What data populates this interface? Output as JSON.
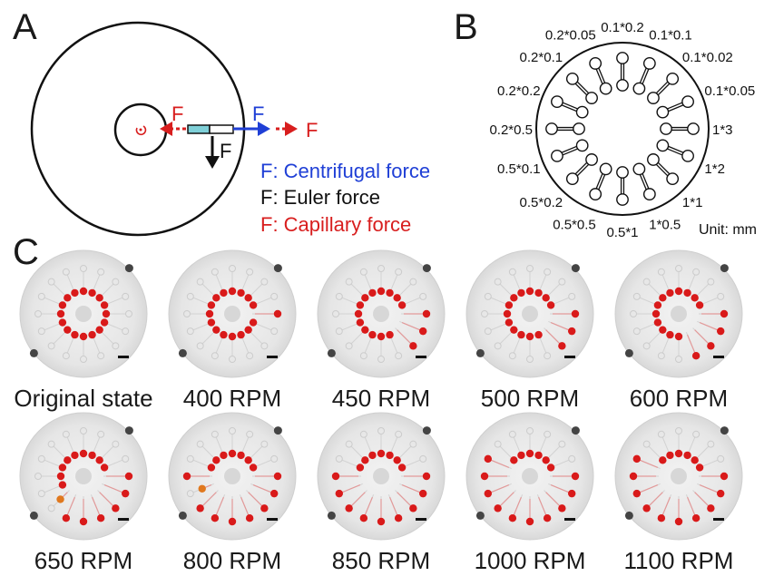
{
  "panels": {
    "a": {
      "letter": "A",
      "force_glyph": "F",
      "legend": [
        {
          "text": "F: Centrifugal force",
          "color": "#1f3fd6"
        },
        {
          "text": "F: Euler force",
          "color": "#111111"
        },
        {
          "text": "F: Capillary force",
          "color": "#d81e1e"
        }
      ],
      "colors": {
        "centrifugal": "#1f3fd6",
        "euler": "#111111",
        "capillary": "#d81e1e",
        "channel": "#7fd0d8"
      }
    },
    "b": {
      "letter": "B",
      "unit": "Unit: mm",
      "channel_labels": [
        "0.1*0.2",
        "0.1*0.1",
        "0.1*0.02",
        "0.1*0.05",
        "1*3",
        "1*2",
        "1*1",
        "1*0.5",
        "0.5*1",
        "0.5*0.5",
        "0.5*0.2",
        "0.5*0.1",
        "0.2*0.5",
        "0.2*0.2",
        "0.2*0.1",
        "0.2*0.05"
      ]
    },
    "c": {
      "letter": "C",
      "discs": [
        {
          "label": "Original state",
          "filled": [],
          "partial": []
        },
        {
          "label": "400 RPM",
          "filled": [
            4
          ],
          "partial": []
        },
        {
          "label": "450 RPM",
          "filled": [
            4,
            5,
            6
          ],
          "partial": []
        },
        {
          "label": "500 RPM",
          "filled": [
            4,
            5,
            6
          ],
          "partial": []
        },
        {
          "label": "600 RPM",
          "filled": [
            4,
            5,
            6,
            7
          ],
          "partial": []
        },
        {
          "label": "650 RPM",
          "filled": [
            4,
            5,
            6,
            7,
            8,
            9
          ],
          "partial": [
            10
          ]
        },
        {
          "label": "800 RPM",
          "filled": [
            4,
            5,
            6,
            7,
            8,
            9,
            10,
            12
          ],
          "partial": [
            11
          ]
        },
        {
          "label": "850 RPM",
          "filled": [
            4,
            5,
            6,
            7,
            8,
            9,
            10,
            11,
            12
          ],
          "partial": []
        },
        {
          "label": "1000 RPM",
          "filled": [
            4,
            5,
            6,
            7,
            8,
            9,
            10,
            11,
            12,
            13
          ],
          "partial": []
        },
        {
          "label": "1100 RPM",
          "filled": [
            4,
            5,
            6,
            7,
            8,
            9,
            10,
            11,
            12,
            13
          ],
          "partial": []
        }
      ],
      "colors": {
        "droplet": "#d91a1a",
        "partial": "#e0781e",
        "disc": "#e9e9e9"
      }
    }
  }
}
